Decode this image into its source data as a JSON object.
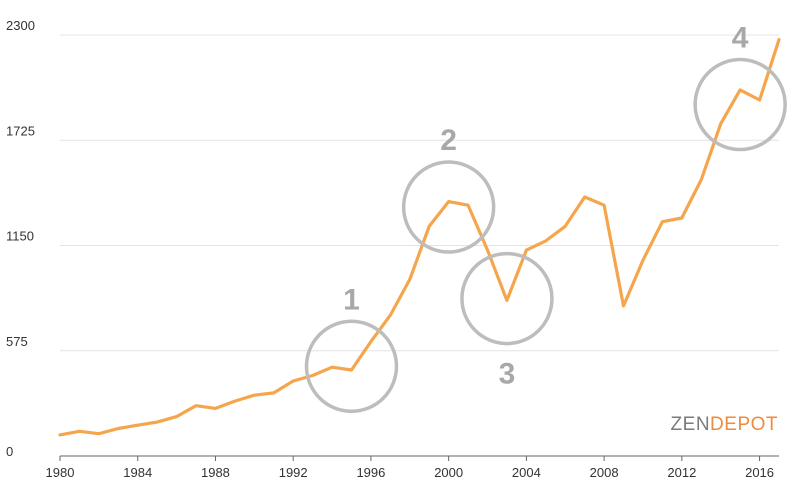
{
  "chart_data": {
    "type": "line",
    "title": "",
    "xlabel": "",
    "ylabel": "",
    "xlim": [
      1980,
      2017
    ],
    "ylim": [
      0,
      2300
    ],
    "y_ticks": [
      0,
      575,
      1150,
      1725,
      2300
    ],
    "y_tick_labels": [
      "0",
      "575",
      "1150",
      "1725",
      "2300"
    ],
    "x_ticks": [
      1980,
      1984,
      1988,
      1992,
      1996,
      2000,
      2004,
      2008,
      2012,
      2016
    ],
    "x_tick_labels": [
      "1980",
      "1984",
      "1988",
      "1992",
      "1996",
      "2000",
      "2004",
      "2008",
      "2012",
      "2016"
    ],
    "grid": "horizontal",
    "series": [
      {
        "color": "#f5a54c",
        "x": [
          1980,
          1981,
          1982,
          1983,
          1984,
          1985,
          1986,
          1987,
          1988,
          1989,
          1990,
          1991,
          1992,
          1993,
          1994,
          1995,
          1996,
          1997,
          1998,
          1999,
          2000,
          2001,
          2002,
          2003,
          2004,
          2005,
          2006,
          2007,
          2008,
          2009,
          2010,
          2011,
          2012,
          2013,
          2014,
          2015,
          2016,
          2017
        ],
        "y": [
          115,
          135,
          122,
          150,
          168,
          185,
          215,
          275,
          260,
          300,
          332,
          345,
          410,
          440,
          485,
          470,
          625,
          770,
          965,
          1255,
          1390,
          1370,
          1125,
          850,
          1125,
          1175,
          1255,
          1415,
          1370,
          820,
          1070,
          1280,
          1300,
          1510,
          1815,
          2000,
          1945,
          2275
        ]
      }
    ],
    "annotations": [
      {
        "label": "1",
        "x": 1995,
        "y": 490
      },
      {
        "label": "2",
        "x": 2000,
        "y": 1360
      },
      {
        "label": "3",
        "x": 2003,
        "y": 860
      },
      {
        "label": "4",
        "x": 2015,
        "y": 1920
      }
    ]
  },
  "logo": {
    "part1": "ZEN",
    "part2": "DEPOT"
  }
}
